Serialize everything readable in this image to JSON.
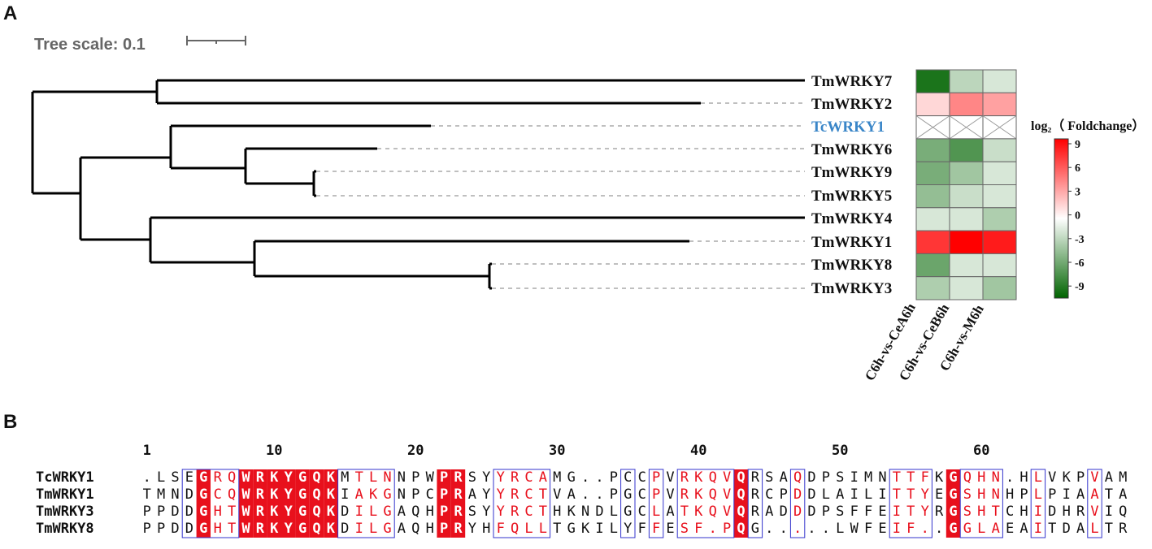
{
  "panels": {
    "a": "A",
    "b": "B"
  },
  "tree_scale": {
    "label": "Tree scale: 0.1"
  },
  "leaves": [
    {
      "name": "TmWRKY7",
      "highlight": false
    },
    {
      "name": "TmWRKY2",
      "highlight": false
    },
    {
      "name": "TcWRKY1",
      "highlight": true
    },
    {
      "name": "TmWRKY6",
      "highlight": false
    },
    {
      "name": "TmWRKY9",
      "highlight": false
    },
    {
      "name": "TmWRKY5",
      "highlight": false
    },
    {
      "name": "TmWRKY4",
      "highlight": false
    },
    {
      "name": "TmWRKY1",
      "highlight": false
    },
    {
      "name": "TmWRKY8",
      "highlight": false
    },
    {
      "name": "TmWRKY3",
      "highlight": false
    }
  ],
  "heatmap": {
    "columns": [
      "C6h-vs-CeA6h",
      "C6h-vs-CeB6h",
      "C6h-vs-M6h"
    ],
    "values": [
      [
        -8.5,
        -2.5,
        -1.5
      ],
      [
        1.5,
        4.5,
        3.5
      ],
      [
        null,
        null,
        null
      ],
      [
        -5,
        -6.5,
        -2
      ],
      [
        -5,
        -3.5,
        -1.5
      ],
      [
        -4,
        -2,
        -1.5
      ],
      [
        -1.5,
        -1.5,
        -3
      ],
      [
        7.5,
        9.5,
        8.5
      ],
      [
        -5.5,
        -1.5,
        -1.5
      ],
      [
        -3,
        -1.5,
        -3.5
      ]
    ]
  },
  "legend": {
    "title": "log₂（ Foldchange）",
    "ticks": [
      "9",
      "6",
      "3",
      "0",
      "-3",
      "-6",
      "-9"
    ],
    "colors": {
      "high": "#ff0000",
      "mid": "#ffffff",
      "low": "#006400"
    }
  },
  "alignment": {
    "positions": [
      "1",
      "10",
      "20",
      "30",
      "40",
      "50",
      "60"
    ],
    "rows": [
      {
        "name": "TcWRKY1",
        "seq": ".LSEGRQWRKYGQKMTLNNPWPRSYYRCAMG..PCCPVRKQVQRSAQDPSIMNTTFKGQHN.HLVKPVAM"
      },
      {
        "name": "TmWRKY1",
        "seq": "TMNDGCQWRKYGQKIAKGNPCPRAYYRCTVA..PGCPVRKQVQRCPDDLAILITTYEGSHNHPLPIAATA"
      },
      {
        "name": "TmWRKY3",
        "seq": "PPDDGHTWRKYGQKDILGAQHPRSYYRCTHKNDLGCLATKQVQRADDDPSFFEITYRGSHTCHIDHRVIQ"
      },
      {
        "name": "TmWRKY8",
        "seq": "PPDDGHTWRKYGQKDILGAQHPRYHFQLLTGKILYFFESF.PQG.....LWFEIF..GGLAEAITDALTR"
      }
    ]
  }
}
